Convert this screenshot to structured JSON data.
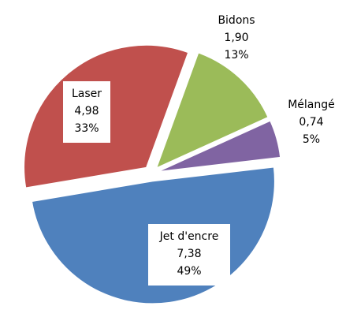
{
  "chart_data": {
    "type": "pie",
    "categories": [
      "Bidons",
      "Mélangé",
      "Jet d'encre",
      "Laser"
    ],
    "values": [
      1.9,
      0.74,
      7.38,
      4.98
    ],
    "value_labels": [
      "1,90",
      "0,74",
      "7,38",
      "4,98"
    ],
    "percents": [
      13,
      5,
      49,
      33
    ],
    "percent_labels": [
      "13%",
      "5%",
      "49%",
      "33%"
    ],
    "colors": [
      "#9bbb59",
      "#8064a2",
      "#4f81bd",
      "#c0504d"
    ]
  }
}
